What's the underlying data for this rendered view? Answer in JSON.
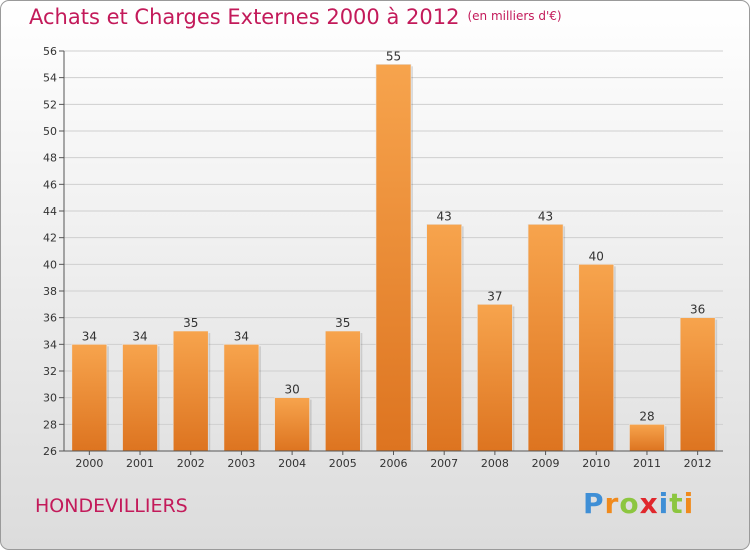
{
  "chart_data": {
    "type": "bar",
    "title": "Achats et Charges Externes 2000 à 2012",
    "subtitle": "(en milliers d'€)",
    "categories": [
      "2000",
      "2001",
      "2002",
      "2003",
      "2004",
      "2005",
      "2006",
      "2007",
      "2008",
      "2009",
      "2010",
      "2011",
      "2012"
    ],
    "values": [
      34,
      34,
      35,
      34,
      30,
      35,
      55,
      43,
      37,
      43,
      40,
      28,
      36
    ],
    "ylim": [
      26,
      56
    ],
    "yticks": [
      26,
      28,
      30,
      32,
      34,
      36,
      38,
      40,
      42,
      44,
      46,
      48,
      50,
      52,
      54,
      56
    ],
    "grid": true,
    "bar_color": "#f0903a",
    "xlabel": "",
    "ylabel": ""
  },
  "place": "HONDEVILLIERS",
  "logo": {
    "letters": [
      "P",
      "r",
      "o",
      "x",
      "i",
      "t",
      "i"
    ],
    "colors": [
      "#3f8fd6",
      "#f08a1c",
      "#8cc63f",
      "#e0272c",
      "#3f8fd6",
      "#8cc63f",
      "#f08a1c"
    ]
  },
  "colors": {
    "title": "#c31a5a",
    "grid": "#cfcfcf"
  }
}
